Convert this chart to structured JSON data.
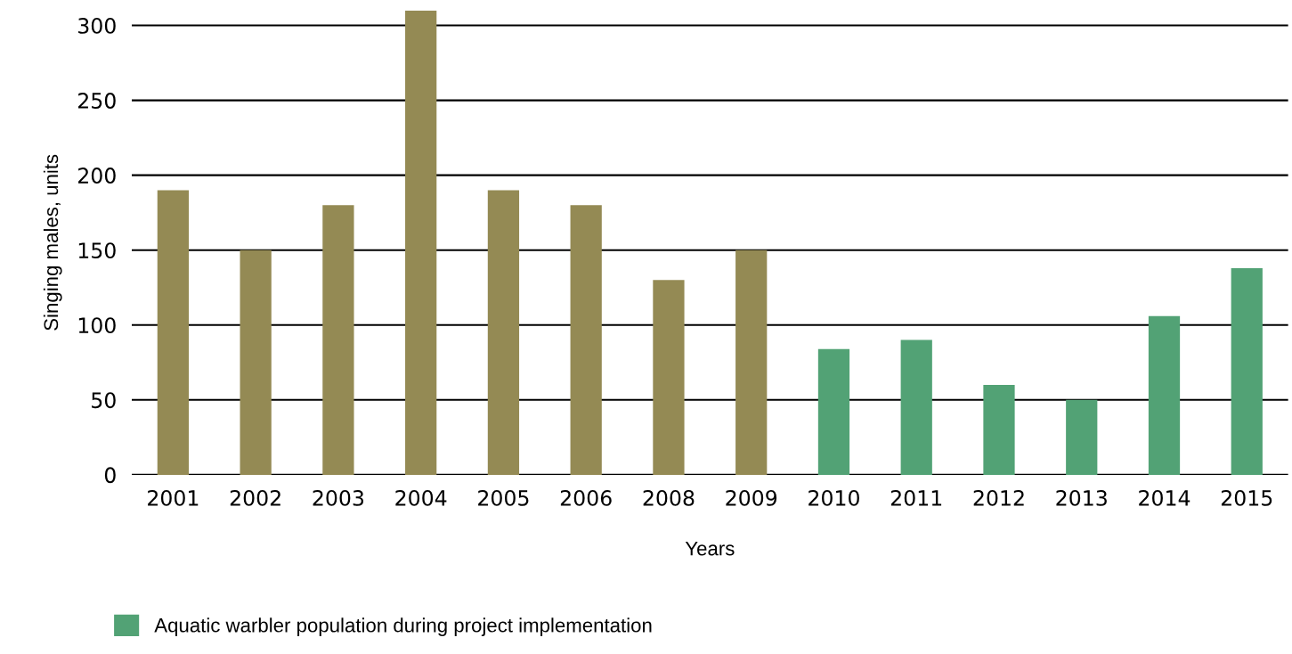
{
  "chart_data": {
    "type": "bar",
    "xlabel": "Years",
    "ylabel": "Singing males, units",
    "categories": [
      "2001",
      "2002",
      "2003",
      "2004",
      "2005",
      "2006",
      "2008",
      "2009",
      "2010",
      "2011",
      "2012",
      "2013",
      "2014",
      "2015"
    ],
    "series": [
      {
        "color": "#948a54",
        "values": [
          190,
          150,
          180,
          310,
          190,
          180,
          130,
          150,
          null,
          null,
          null,
          null,
          null,
          null
        ]
      },
      {
        "name": "Aquatic warbler population during project implementation",
        "color": "#52a275",
        "values": [
          null,
          null,
          null,
          null,
          null,
          null,
          null,
          null,
          84,
          90,
          60,
          50,
          106,
          138
        ]
      }
    ],
    "ylim": [
      0,
      310
    ],
    "yticks": [
      0,
      50,
      100,
      150,
      200,
      250,
      300
    ],
    "grid": "y",
    "legend": "bottom left"
  }
}
